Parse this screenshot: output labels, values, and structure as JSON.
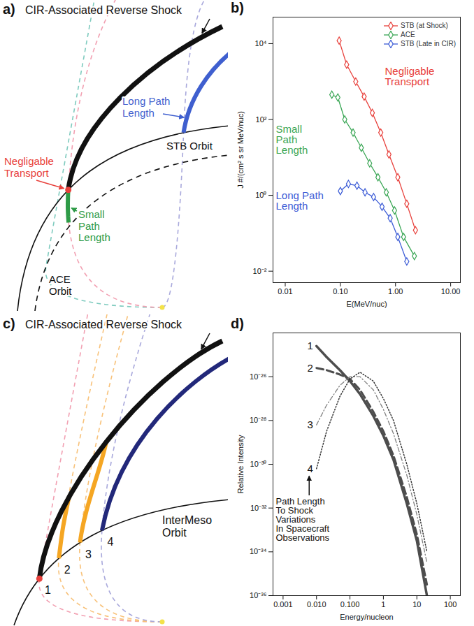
{
  "diagrams": [
    {
      "panel_label": "a)",
      "shock_label": "CIR-Associated Reverse Shock",
      "long_path": "Long Path Length",
      "orbit_outer": "STB Orbit",
      "negligible": "Negligable Transport",
      "small_path": "Small Path Length",
      "orbit_inner": "ACE Orbit"
    },
    {
      "panel_label": "c)",
      "shock_label": "CIR-Associated Reverse Shock",
      "orbit": "InterMeso Orbit",
      "points": [
        "1",
        "2",
        "3",
        "4"
      ]
    }
  ],
  "chart_data": [
    {
      "panel_label": "b)",
      "type": "line",
      "marker": "diamond",
      "log": true,
      "legend": "top-right",
      "xlabel": "E(MeV/nuc)",
      "ylabel": "J #/(cm² s sr MeV/nuc)",
      "xlim": [
        0.006,
        15
      ],
      "ylim": [
        0.005,
        50000
      ],
      "xticks": [
        {
          "value": 0.01,
          "label": "0.01"
        },
        {
          "value": 0.1,
          "label": "0.10"
        },
        {
          "value": 1,
          "label": "1.00"
        },
        {
          "value": 10,
          "label": "10.00"
        }
      ],
      "yticks": [
        {
          "value": 0.01,
          "label": "10⁻²"
        },
        {
          "value": 1,
          "label": "10⁰"
        },
        {
          "value": 100,
          "label": "10²"
        },
        {
          "value": 10000,
          "label": "10⁴"
        }
      ],
      "series": [
        {
          "name": "STB (at Shock)",
          "color": "#e8413c",
          "x": [
            0.095,
            0.13,
            0.19,
            0.27,
            0.38,
            0.54,
            0.76,
            1.1,
            1.6,
            2.3
          ],
          "values": [
            12000,
            2800,
            1000,
            400,
            150,
            45,
            12,
            3,
            0.6,
            0.12
          ]
        },
        {
          "name": "ACE",
          "color": "#3aa655",
          "x": [
            0.07,
            0.09,
            0.12,
            0.17,
            0.24,
            0.34,
            0.48,
            0.68,
            0.96,
            1.4,
            2.2
          ],
          "values": [
            450,
            380,
            100,
            45,
            18,
            7,
            3,
            1.2,
            0.4,
            0.08,
            0.025
          ]
        },
        {
          "name": "STB (Late in CIR)",
          "color": "#3b5bd6",
          "x": [
            0.1,
            0.14,
            0.2,
            0.28,
            0.4,
            0.57,
            0.8,
            1.1,
            1.6
          ],
          "values": [
            1.3,
            2,
            1.8,
            1.2,
            0.9,
            0.5,
            0.25,
            0.08,
            0.018
          ]
        }
      ],
      "annotations": [
        {
          "text": "Negligable Transport",
          "color": "#e8413c"
        },
        {
          "text": "Small Path Length",
          "color": "#3aa655"
        },
        {
          "text": "Long Path Length",
          "color": "#3b5bd6"
        }
      ]
    },
    {
      "panel_label": "d)",
      "type": "line",
      "log": true,
      "xlabel": "Energy/nucleon",
      "ylabel": "Relative Intensity",
      "xlim": [
        0.0005,
        200
      ],
      "ylim": [
        1e-36,
        1e-24
      ],
      "xticks": [
        {
          "value": 0.001,
          "label": "0.001"
        },
        {
          "value": 0.01,
          "label": "0.010"
        },
        {
          "value": 0.1,
          "label": "0.100"
        },
        1,
        10,
        100
      ],
      "yticks": [
        {
          "value": 1e-36,
          "label": "10⁻³⁶"
        },
        {
          "value": 1e-34,
          "label": "10⁻³⁴"
        },
        {
          "value": 1e-32,
          "label": "10⁻³²"
        },
        {
          "value": 1e-30,
          "label": "10⁻³⁰"
        },
        {
          "value": 1e-28,
          "label": "10⁻²⁸"
        },
        {
          "value": 1e-26,
          "label": "10⁻²⁶"
        }
      ],
      "x": [
        0.01,
        0.02,
        0.05,
        0.1,
        0.2,
        0.5,
        1,
        2,
        5,
        10,
        20
      ],
      "series": [
        {
          "name": "1",
          "color": "#4d4d4d",
          "line_style": "solid",
          "values": [
            2.51e-25,
            7.94e-26,
            2e-26,
            6.3e-27,
            1.6e-27,
            1.6e-28,
            2e-29,
            1.6e-30,
            1.6e-32,
            3.2e-34,
            1e-36
          ]
        },
        {
          "name": "2",
          "color": "#4d4d4d",
          "line_style": "dashed",
          "values": [
            2.5e-26,
            2e-26,
            1.26e-26,
            7.9e-27,
            2.5e-27,
            2.5e-28,
            3.2e-29,
            2.5e-30,
            3.2e-32,
            6.3e-34,
            3.2e-36
          ]
        },
        {
          "name": "3",
          "color": "#808080",
          "line_style": "dashdot",
          "values": [
            6.3e-29,
            5e-28,
            4e-27,
            1e-26,
            1e-26,
            2.5e-27,
            3.2e-28,
            2.5e-29,
            3.2e-31,
            5e-33,
            3.2e-35
          ]
        },
        {
          "name": "4",
          "color": "#333333",
          "line_style": "dotted",
          "values": [
            6.3e-31,
            3.2e-29,
            1.26e-27,
            7.9e-27,
            1.6e-26,
            6.3e-27,
            1e-27,
            1e-28,
            1e-30,
            1.6e-32,
            1e-34
          ]
        }
      ],
      "annotation_lines": [
        "Path Length",
        "To Shock",
        "Variations",
        "In Spacecraft",
        "Observations"
      ]
    }
  ]
}
